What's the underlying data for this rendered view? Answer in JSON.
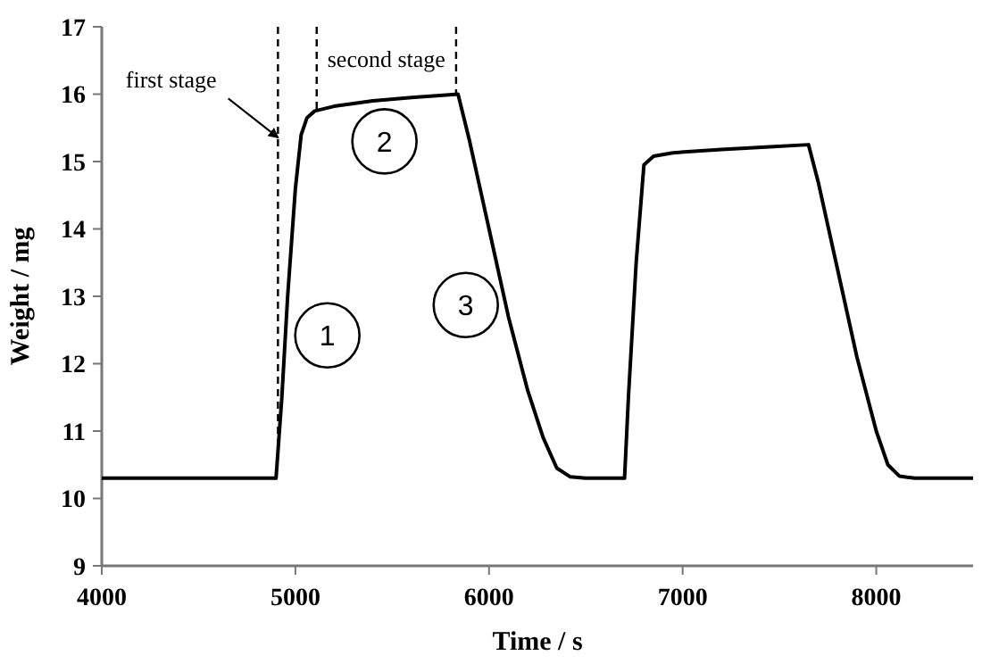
{
  "chart_data": {
    "type": "line",
    "xlabel": "Time / s",
    "ylabel": "Weight / mg",
    "xlim": [
      4000,
      8500
    ],
    "xticks": [
      4000,
      5000,
      6000,
      7000,
      8000
    ],
    "ylim": [
      9,
      17
    ],
    "yticks": [
      9,
      10,
      11,
      12,
      13,
      14,
      15,
      16,
      17
    ],
    "grid": false,
    "marker": "none",
    "line_style": "solid",
    "series": [
      {
        "color": "#000000",
        "x": [
          4000,
          4500,
          4900,
          4930,
          4960,
          5000,
          5030,
          5060,
          5100,
          5200,
          5400,
          5600,
          5840,
          5900,
          6000,
          6100,
          6200,
          6280,
          6350,
          6420,
          6500,
          6700,
          6720,
          6760,
          6800,
          6850,
          6950,
          7200,
          7450,
          7650,
          7700,
          7800,
          7900,
          8000,
          8060,
          8120,
          8200,
          8500
        ],
        "values": [
          10.3,
          10.3,
          10.3,
          11.5,
          13.0,
          14.6,
          15.4,
          15.65,
          15.75,
          15.82,
          15.9,
          15.95,
          16.0,
          15.3,
          14.0,
          12.7,
          11.6,
          10.9,
          10.45,
          10.32,
          10.3,
          10.3,
          11.5,
          13.5,
          14.95,
          15.08,
          15.13,
          15.18,
          15.22,
          15.25,
          14.7,
          13.4,
          12.1,
          11.0,
          10.5,
          10.33,
          10.3,
          10.3
        ]
      }
    ],
    "ref_lines": [
      {
        "axis": "x",
        "value": 4910,
        "line_style": "dashed"
      },
      {
        "axis": "x",
        "value": 5110,
        "line_style": "dashed"
      },
      {
        "axis": "x",
        "value": 5830,
        "line_style": "dashed"
      }
    ],
    "annotations": [
      {
        "text": "first stage",
        "x": 4930,
        "y": 15.3
      },
      "second stage",
      {
        "text": "1",
        "x": 5165,
        "y": 12.42
      },
      {
        "text": "2",
        "x": 5460,
        "y": 15.3
      },
      {
        "text": "3",
        "x": 5880,
        "y": 12.87
      }
    ]
  }
}
